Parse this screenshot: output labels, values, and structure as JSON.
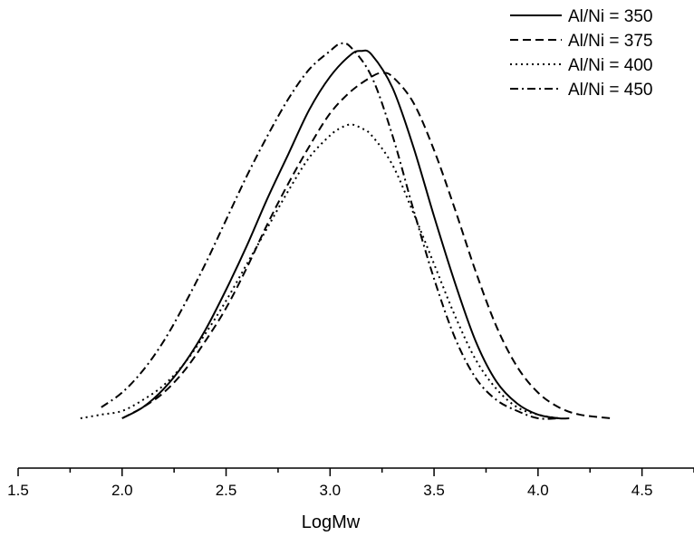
{
  "chart_data": {
    "type": "line",
    "title": "",
    "xlabel": "LogMw",
    "ylabel": "",
    "xlim": [
      1.5,
      4.75
    ],
    "ylim": [
      0,
      1.05
    ],
    "xticks": [
      {
        "value": 1.5,
        "label": "1.5"
      },
      {
        "value": 2.0,
        "label": "2.0"
      },
      {
        "value": 2.5,
        "label": "2.5"
      },
      {
        "value": 3.0,
        "label": "3.0"
      },
      {
        "value": 3.5,
        "label": "3.5"
      },
      {
        "value": 4.0,
        "label": "4.0"
      },
      {
        "value": 4.5,
        "label": "4.5"
      }
    ],
    "y_axis_visible": false,
    "grid": false,
    "legend_position": "top-right",
    "series": [
      {
        "name": "Al/Ni = 350",
        "style": "solid",
        "color": "#000000",
        "x": [
          2.0,
          2.1,
          2.2,
          2.3,
          2.4,
          2.5,
          2.6,
          2.7,
          2.8,
          2.9,
          3.0,
          3.1,
          3.15,
          3.2,
          3.3,
          3.4,
          3.5,
          3.6,
          3.7,
          3.8,
          3.9,
          4.0,
          4.1,
          4.15
        ],
        "y": [
          0.0,
          0.03,
          0.08,
          0.15,
          0.24,
          0.35,
          0.47,
          0.6,
          0.72,
          0.84,
          0.93,
          0.99,
          1.0,
          0.99,
          0.9,
          0.74,
          0.55,
          0.37,
          0.21,
          0.1,
          0.04,
          0.01,
          0.0,
          0.0
        ]
      },
      {
        "name": "Al/Ni = 375",
        "style": "dashed",
        "color": "#000000",
        "x": [
          2.0,
          2.1,
          2.2,
          2.3,
          2.4,
          2.5,
          2.6,
          2.7,
          2.8,
          2.9,
          3.0,
          3.1,
          3.2,
          3.25,
          3.3,
          3.4,
          3.5,
          3.6,
          3.7,
          3.8,
          3.9,
          4.0,
          4.1,
          4.2,
          4.35
        ],
        "y": [
          0.0,
          0.03,
          0.07,
          0.13,
          0.21,
          0.3,
          0.41,
          0.53,
          0.64,
          0.74,
          0.83,
          0.89,
          0.93,
          0.94,
          0.93,
          0.86,
          0.73,
          0.57,
          0.4,
          0.25,
          0.14,
          0.07,
          0.03,
          0.01,
          0.0
        ]
      },
      {
        "name": "Al/Ni = 400",
        "style": "dotted",
        "color": "#000000",
        "x": [
          1.8,
          1.9,
          2.0,
          2.1,
          2.2,
          2.3,
          2.4,
          2.5,
          2.6,
          2.7,
          2.8,
          2.9,
          3.0,
          3.05,
          3.1,
          3.15,
          3.2,
          3.3,
          3.4,
          3.5,
          3.6,
          3.7,
          3.8,
          3.9,
          4.0,
          4.1
        ],
        "y": [
          0.0,
          0.01,
          0.02,
          0.05,
          0.09,
          0.15,
          0.23,
          0.32,
          0.42,
          0.52,
          0.62,
          0.71,
          0.77,
          0.79,
          0.8,
          0.79,
          0.77,
          0.69,
          0.56,
          0.42,
          0.28,
          0.16,
          0.08,
          0.03,
          0.01,
          0.0
        ]
      },
      {
        "name": "Al/Ni = 450",
        "style": "dashdot",
        "color": "#000000",
        "x": [
          1.9,
          2.0,
          2.1,
          2.2,
          2.3,
          2.4,
          2.5,
          2.6,
          2.7,
          2.8,
          2.9,
          3.0,
          3.05,
          3.1,
          3.2,
          3.3,
          3.4,
          3.5,
          3.6,
          3.7,
          3.8,
          3.9,
          4.0,
          4.1
        ],
        "y": [
          0.03,
          0.07,
          0.13,
          0.21,
          0.31,
          0.42,
          0.54,
          0.66,
          0.77,
          0.87,
          0.95,
          1.0,
          1.02,
          1.01,
          0.93,
          0.77,
          0.57,
          0.38,
          0.22,
          0.11,
          0.05,
          0.02,
          0.0,
          0.0
        ]
      }
    ]
  }
}
